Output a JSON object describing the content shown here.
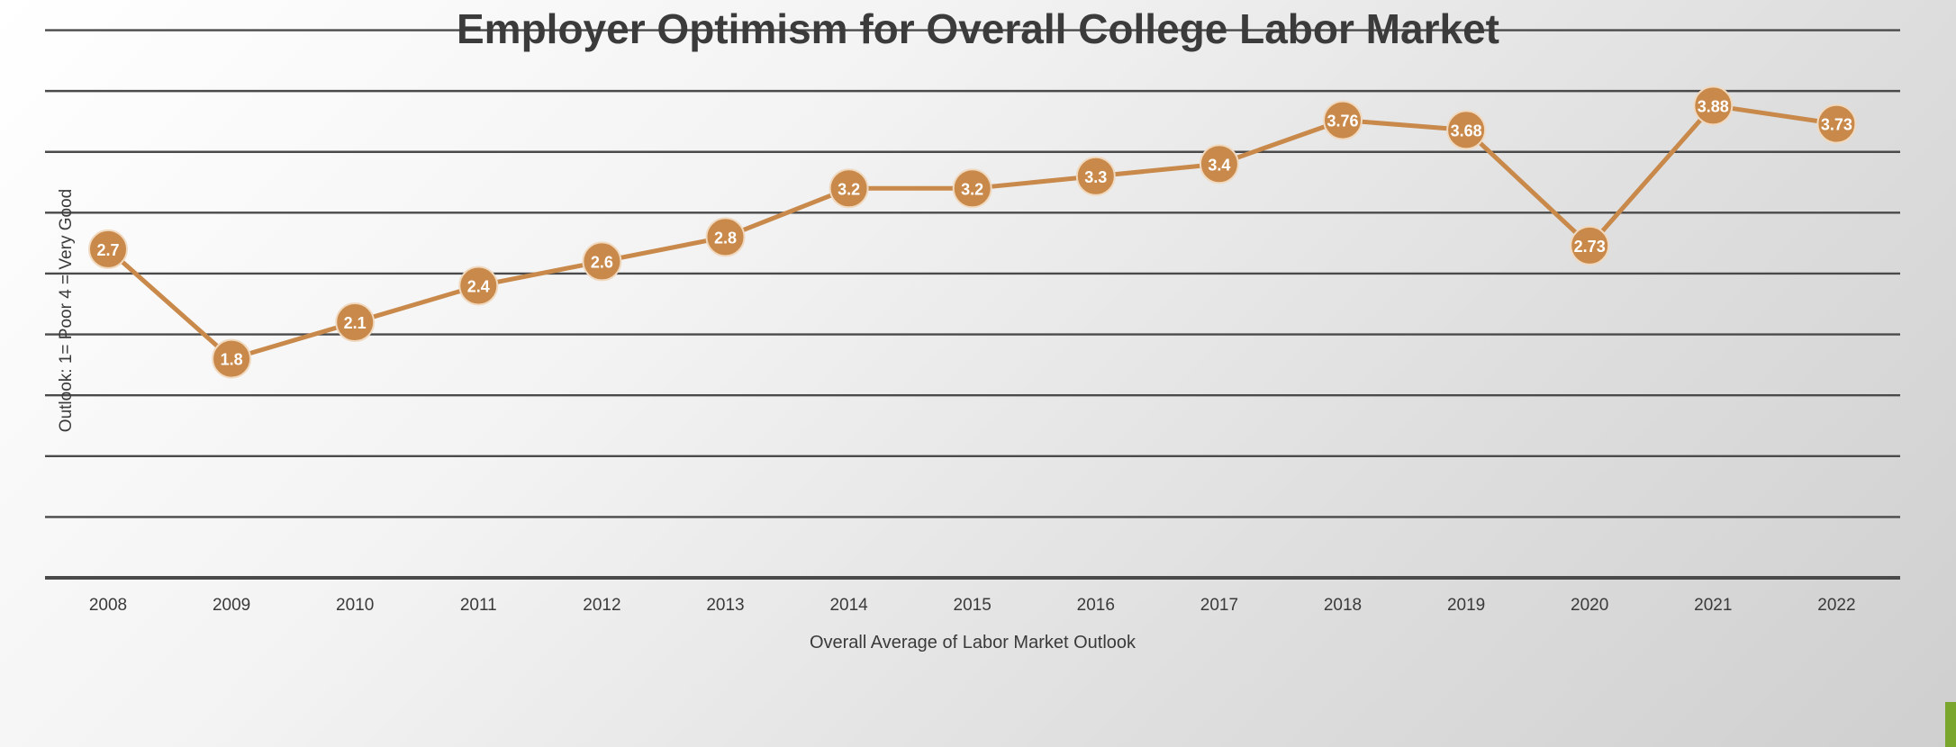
{
  "colors": {
    "series": "#C8894A",
    "gridline": "#4a4a4a",
    "title": "#3b3b3b",
    "axis_text": "#3a3a3a",
    "label_text": "#ffffff",
    "accent": "#7aa62e"
  },
  "chart_data": {
    "type": "line",
    "title": "Employer Optimism for Overall College Labor Market",
    "xlabel": "Overall Average of Labor Market Outlook",
    "ylabel": "Outlook: 1= Poor 4 = Very Good",
    "categories": [
      "2008",
      "2009",
      "2010",
      "2011",
      "2012",
      "2013",
      "2014",
      "2015",
      "2016",
      "2017",
      "2018",
      "2019",
      "2020",
      "2021",
      "2022"
    ],
    "series": [
      {
        "values": [
          2.7,
          1.8,
          2.1,
          2.4,
          2.6,
          2.8,
          3.2,
          3.2,
          3.3,
          3.4,
          3.76,
          3.68,
          2.73,
          3.88,
          3.73
        ],
        "labels": [
          "2.7",
          "1.8",
          "2.1",
          "2.4",
          "2.6",
          "2.8",
          "3.2",
          "3.2",
          "3.3",
          "3.4",
          "3.76",
          "3.68",
          "2.73",
          "3.88",
          "3.73"
        ]
      }
    ],
    "ylim": [
      0,
      4.6
    ],
    "gridlines": [
      0,
      0.5,
      1,
      1.5,
      2,
      2.5,
      3,
      3.5,
      4,
      4.5
    ],
    "grid": true,
    "legend": "none",
    "y_tick_labels": false
  }
}
